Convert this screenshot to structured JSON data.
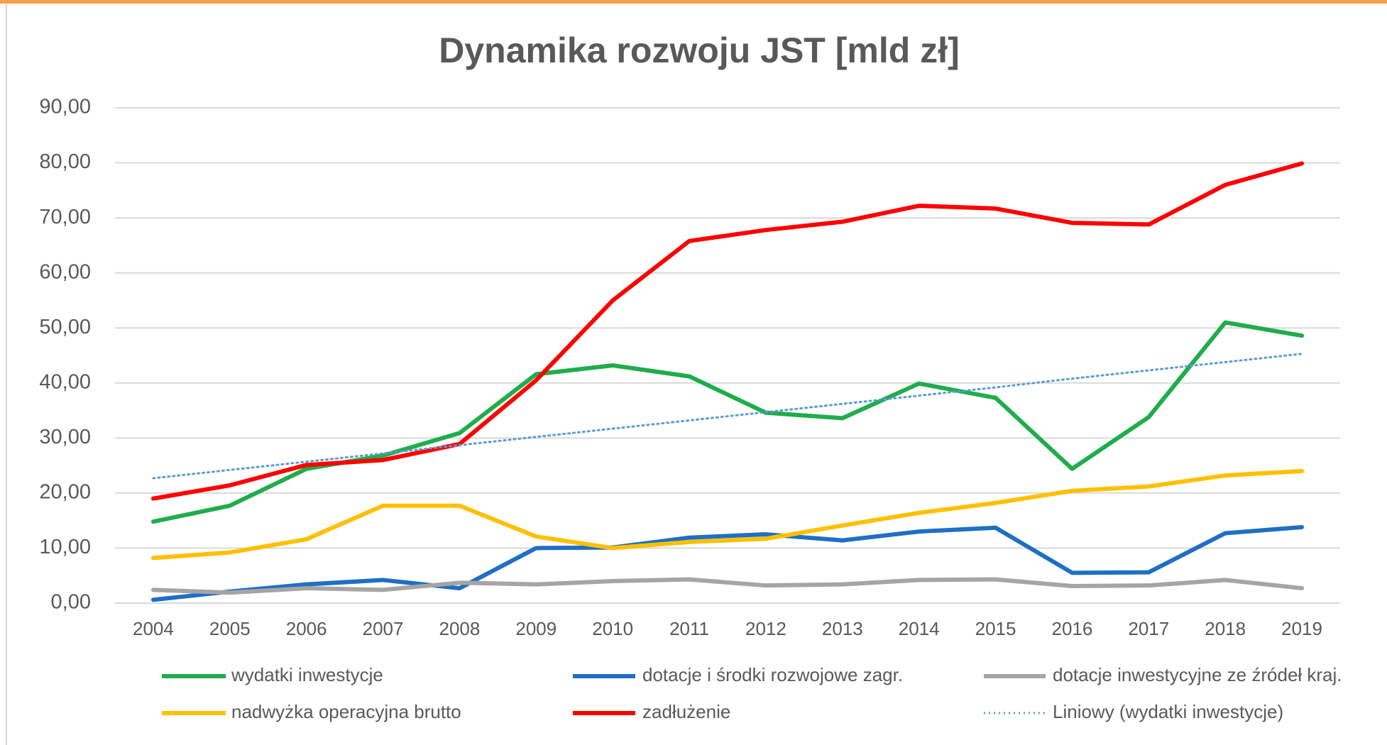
{
  "chart_data": {
    "type": "line",
    "title": "Dynamika rozwoju JST [mld zł]",
    "categories": [
      "2004",
      "2005",
      "2006",
      "2007",
      "2008",
      "2009",
      "2010",
      "2011",
      "2012",
      "2013",
      "2014",
      "2015",
      "2016",
      "2017",
      "2018",
      "2019"
    ],
    "ylim": [
      0,
      90
    ],
    "yticks": [
      {
        "value": 0,
        "label": "0,00"
      },
      {
        "value": 10,
        "label": "10,00"
      },
      {
        "value": 20,
        "label": "20,00"
      },
      {
        "value": 30,
        "label": "30,00"
      },
      {
        "value": 40,
        "label": "40,00"
      },
      {
        "value": 50,
        "label": "50,00"
      },
      {
        "value": 60,
        "label": "60,00"
      },
      {
        "value": 70,
        "label": "70,00"
      },
      {
        "value": 80,
        "label": "80,00"
      },
      {
        "value": 90,
        "label": "90,00"
      }
    ],
    "grid": true,
    "legend": "bottom",
    "series": [
      {
        "name": "wydatki inwestycje",
        "color": "#1fad4b",
        "values": [
          14.8,
          17.7,
          24.4,
          26.8,
          30.9,
          41.6,
          43.2,
          41.2,
          34.6,
          33.6,
          39.9,
          37.3,
          24.4,
          33.8,
          51.0,
          48.6
        ]
      },
      {
        "name": "dotacje i środki rozwojowe zagr.",
        "color": "#1f6fc4",
        "values": [
          0.6,
          2.1,
          3.4,
          4.2,
          2.7,
          10.0,
          10.1,
          11.9,
          12.5,
          11.4,
          13.0,
          13.7,
          5.5,
          5.6,
          12.7,
          13.8
        ]
      },
      {
        "name": "dotacje inwestycyjne ze źródeł kraj.",
        "color": "#a5a5a5",
        "values": [
          2.4,
          1.9,
          2.7,
          2.4,
          3.7,
          3.4,
          4.0,
          4.3,
          3.2,
          3.4,
          4.2,
          4.3,
          3.1,
          3.2,
          4.2,
          2.7
        ]
      },
      {
        "name": "nadwyżka operacyjna brutto",
        "color": "#ffc000",
        "values": [
          8.2,
          9.2,
          11.6,
          17.7,
          17.7,
          12.1,
          10.0,
          11.1,
          11.7,
          14.1,
          16.4,
          18.2,
          20.4,
          21.2,
          23.2,
          24.0
        ]
      },
      {
        "name": "zadłużenie",
        "color": "#ff0000",
        "values": [
          19.0,
          21.4,
          25.1,
          26.0,
          28.9,
          40.5,
          55.0,
          65.8,
          67.8,
          69.3,
          72.2,
          71.7,
          69.1,
          68.8,
          76.0,
          79.9
        ]
      },
      {
        "name": "Liniowy (wydatki inwestycje)",
        "color": "#5b9bd5",
        "dash": true,
        "values": [
          22.7,
          24.2,
          25.7,
          27.2,
          28.7,
          30.2,
          31.7,
          33.2,
          34.7,
          36.2,
          37.7,
          39.2,
          40.8,
          42.3,
          43.8,
          45.3
        ]
      }
    ]
  }
}
